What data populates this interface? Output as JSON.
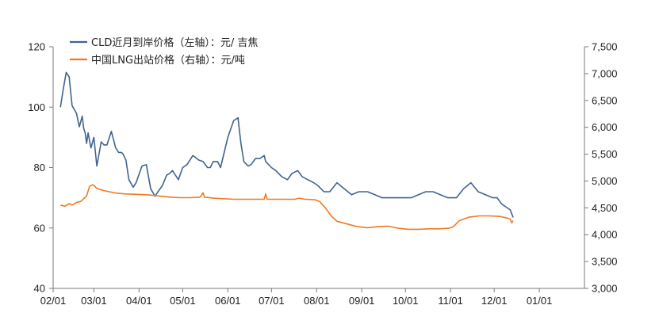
{
  "chart_data": {
    "type": "line",
    "title": "",
    "xlabel": "",
    "ylabel": "",
    "x_ticks": [
      "02/01",
      "03/01",
      "04/01",
      "05/01",
      "06/01",
      "07/01",
      "08/01",
      "09/01",
      "10/01",
      "11/01",
      "12/01",
      "01/01"
    ],
    "xlim": [
      "02/01",
      "01/01"
    ],
    "left_axis": {
      "ylim": [
        40,
        120
      ],
      "ticks": [
        "40",
        "60",
        "80",
        "100",
        "120"
      ]
    },
    "right_axis": {
      "ylim": [
        3000,
        7500
      ],
      "ticks": [
        "3,000",
        "3,500",
        "4,000",
        "4,500",
        "5,000",
        "5,500",
        "6,000",
        "6,500",
        "7,000",
        "7,500"
      ]
    },
    "grid": false,
    "legend_position": "top-left",
    "series": [
      {
        "name": "CLD近月到岸价格（左轴）：元/ 吉焦",
        "axis": "left",
        "color": "#41648f",
        "x": [
          "02/06",
          "02/08",
          "02/10",
          "02/12",
          "02/14",
          "02/17",
          "02/19",
          "02/21",
          "02/22",
          "02/23",
          "02/24",
          "02/25",
          "02/27",
          "03/01",
          "03/03",
          "03/06",
          "03/08",
          "03/10",
          "03/13",
          "03/16",
          "03/18",
          "03/20",
          "03/21",
          "03/23",
          "03/25",
          "03/28",
          "03/30",
          "04/03",
          "04/06",
          "04/09",
          "04/12",
          "04/14",
          "04/17",
          "04/20",
          "04/22",
          "04/24",
          "04/26",
          "04/28",
          "05/01",
          "05/04",
          "05/08",
          "05/12",
          "05/15",
          "05/18",
          "05/20",
          "05/22",
          "05/25",
          "05/27",
          "06/01",
          "06/05",
          "06/08",
          "06/10",
          "06/12",
          "06/15",
          "06/17",
          "06/20",
          "06/23",
          "06/26",
          "06/27",
          "06/29",
          "07/01",
          "07/04",
          "07/08",
          "07/12",
          "07/15",
          "07/19",
          "07/22",
          "07/26",
          "07/30",
          "08/02",
          "08/06",
          "08/10",
          "08/15",
          "08/20",
          "08/25",
          "08/30",
          "09/05",
          "09/10",
          "09/15",
          "09/20",
          "09/25",
          "09/30",
          "10/05",
          "10/10",
          "10/15",
          "10/20",
          "10/25",
          "10/30",
          "11/05",
          "11/10",
          "11/15",
          "11/20",
          "11/25",
          "11/30",
          "12/03",
          "12/06",
          "12/09",
          "12/12",
          "12/14"
        ],
        "values": [
          100,
          106,
          111.5,
          110,
          100.5,
          98,
          93.5,
          97,
          93,
          91.5,
          88,
          91.5,
          86.5,
          90,
          80.5,
          88.5,
          87.5,
          87.5,
          92,
          86.5,
          85,
          85,
          84.5,
          82.5,
          76,
          73.5,
          75,
          80.5,
          81,
          73,
          70.5,
          72,
          74,
          77.5,
          78,
          79,
          77.5,
          76,
          80,
          81,
          84,
          82.5,
          82,
          80,
          80,
          82,
          82,
          80,
          90,
          95.5,
          96.5,
          88,
          82,
          80.5,
          81,
          83,
          83,
          84,
          82,
          81,
          80,
          79,
          77,
          76,
          78,
          79,
          77,
          76,
          75,
          74,
          72,
          72,
          75,
          73,
          71,
          72,
          72,
          71,
          70,
          70,
          70,
          70,
          70,
          71,
          72,
          72,
          71,
          70,
          70,
          73,
          75,
          72,
          71,
          70,
          70,
          68,
          67,
          66,
          63.5
        ]
      },
      {
        "name": "中国LNG出站价格（右轴）：元/吨",
        "axis": "right",
        "color": "#ee7a22",
        "x": [
          "02/06",
          "02/09",
          "02/12",
          "02/14",
          "02/17",
          "02/20",
          "02/24",
          "02/26",
          "02/28",
          "03/01",
          "03/03",
          "03/08",
          "03/15",
          "03/22",
          "04/01",
          "04/08",
          "04/15",
          "04/22",
          "04/29",
          "05/06",
          "05/13",
          "05/15",
          "05/16",
          "05/22",
          "05/29",
          "06/05",
          "06/12",
          "06/19",
          "06/26",
          "06/27",
          "06/28",
          "07/03",
          "07/10",
          "07/17",
          "07/20",
          "07/24",
          "07/31",
          "08/03",
          "08/07",
          "08/11",
          "08/15",
          "08/22",
          "08/29",
          "09/05",
          "09/12",
          "09/19",
          "09/26",
          "10/03",
          "10/10",
          "10/17",
          "10/24",
          "10/31",
          "11/03",
          "11/07",
          "11/14",
          "11/21",
          "11/28",
          "12/05",
          "12/10",
          "12/12",
          "12/13",
          "12/14"
        ],
        "values": [
          4550,
          4530,
          4580,
          4550,
          4600,
          4620,
          4720,
          4900,
          4930,
          4920,
          4860,
          4820,
          4780,
          4760,
          4750,
          4740,
          4720,
          4700,
          4690,
          4690,
          4700,
          4780,
          4700,
          4680,
          4670,
          4660,
          4660,
          4660,
          4660,
          4760,
          4660,
          4660,
          4660,
          4660,
          4680,
          4660,
          4650,
          4620,
          4500,
          4350,
          4250,
          4200,
          4150,
          4130,
          4150,
          4160,
          4120,
          4100,
          4100,
          4110,
          4110,
          4120,
          4150,
          4260,
          4330,
          4350,
          4350,
          4340,
          4310,
          4290,
          4220,
          4260
        ]
      }
    ]
  }
}
